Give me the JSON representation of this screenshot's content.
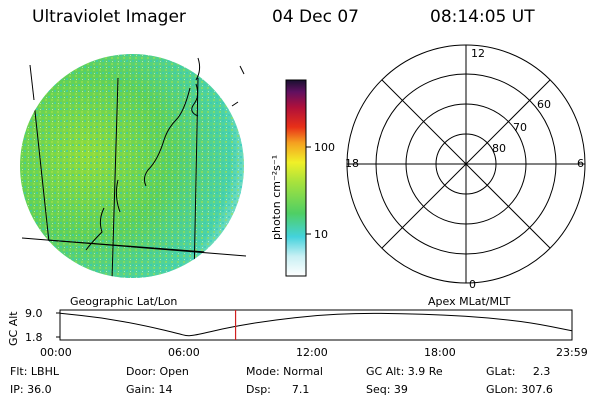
{
  "header": {
    "instrument": "Ultraviolet Imager",
    "date": "04 Dec 07",
    "time": "08:14:05 UT"
  },
  "colorbar": {
    "unit_label": "photon cm⁻²s⁻¹",
    "tick_100": "100",
    "tick_10": "10"
  },
  "panels": {
    "left_label": "Geographic Lat/Lon",
    "right_label": "Apex MLat/MLT"
  },
  "polar": {
    "mlt_labels": {
      "top": "12",
      "left": "18",
      "right": "6",
      "bottom": "0"
    },
    "lat_labels": [
      "60",
      "70",
      "80"
    ]
  },
  "altitude_plot": {
    "ylabel": "GC Alt",
    "y_ticks": [
      "9.0",
      "1.8"
    ],
    "x_ticks": [
      "00:00",
      "06:00",
      "12:00",
      "18:00",
      "23:59"
    ],
    "current_time_hours": 8.23,
    "orbit": {
      "y_range": [
        1.8,
        9.0
      ],
      "hours": [
        0,
        2,
        4,
        5.5,
        6,
        6.5,
        8,
        10,
        12,
        14,
        16,
        18,
        20,
        22,
        23.99
      ],
      "alt": [
        8.9,
        7.6,
        5.2,
        2.9,
        2.0,
        2.6,
        4.8,
        6.9,
        8.3,
        8.95,
        8.8,
        8.4,
        7.6,
        6.2,
        3.7
      ]
    }
  },
  "info": {
    "flt": "Flt: LBHL",
    "ip": "IP: 36.0",
    "door": "Door: Open",
    "gain": "Gain: 14",
    "mode": "Mode: Normal",
    "dsp": "Dsp:      7.1",
    "gc_alt": "GC Alt: 3.9 Re",
    "seq": "Seq: 39",
    "glat": "GLat:     2.3",
    "glon": "GLon: 307.6"
  }
}
